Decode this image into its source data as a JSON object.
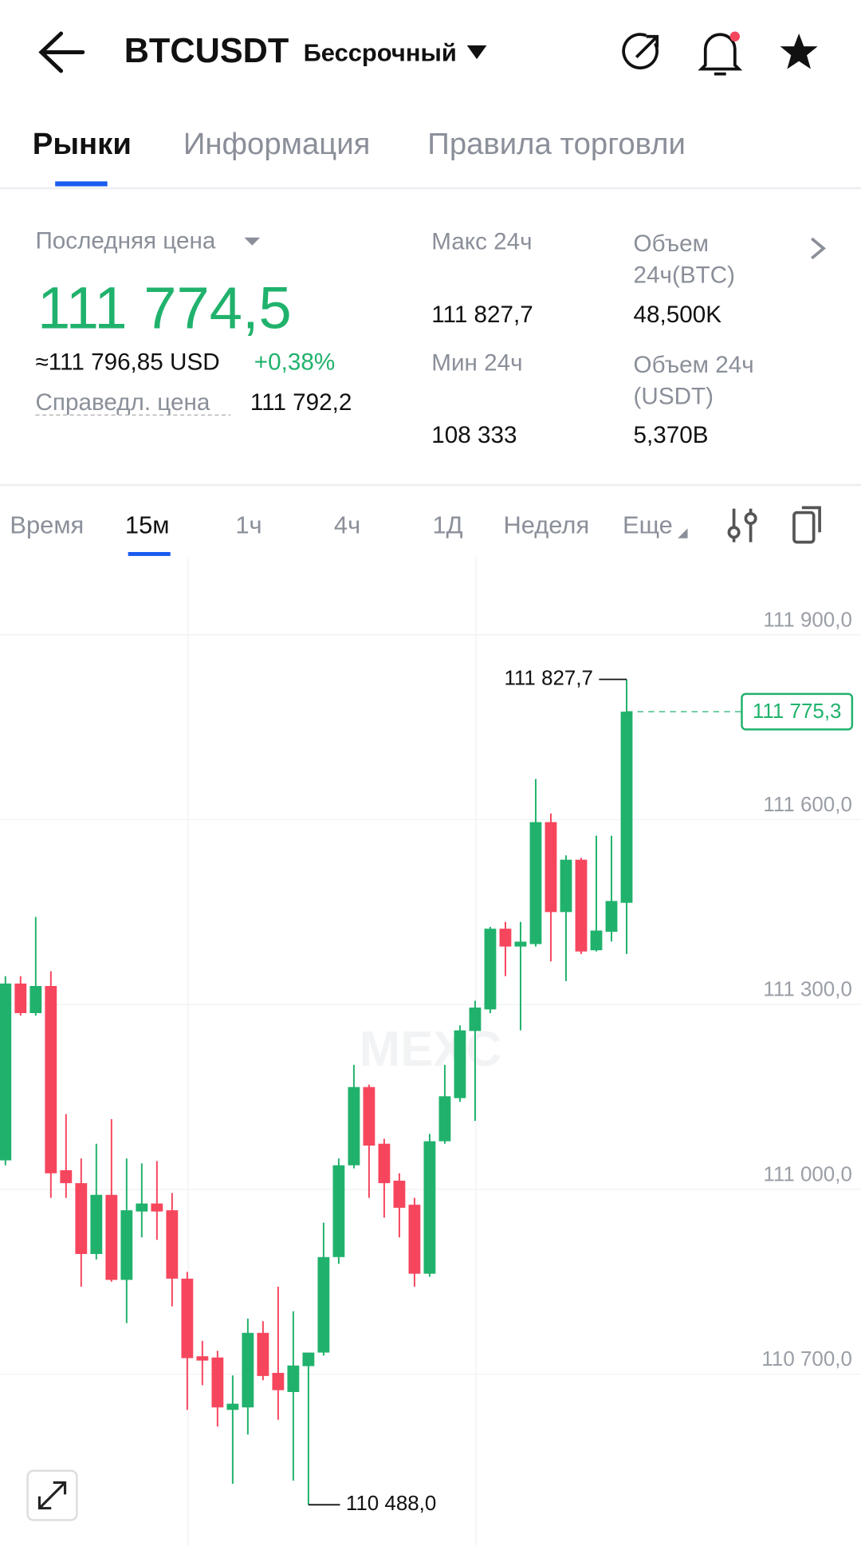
{
  "header": {
    "symbol": "BTCUSDT",
    "contract": "Бессрочный"
  },
  "tabs": [
    "Рынки",
    "Информация",
    "Правила торговли"
  ],
  "stats": {
    "last_price_label": "Последняя цена",
    "last_price": "111 774,5",
    "usd": "≈111 796,85 USD",
    "change": "+0,38%",
    "fair_label": "Справедл. цена",
    "fair": "111 792,2",
    "high_label": "Макс 24ч",
    "high": "111 827,7",
    "low_label": "Мин 24ч",
    "low": "108 333",
    "vol_btc_label": "Объем 24ч(BTC)",
    "vol_btc": "48,500K",
    "vol_usdt_label": "Объем 24ч (USDT)",
    "vol_usdt": "5,370B"
  },
  "timeframes": [
    "Время",
    "15м",
    "1ч",
    "4ч",
    "1Д",
    "Неделя",
    "Еще"
  ],
  "chart_data": {
    "type": "candlestick",
    "watermark": "MEXC",
    "up_color": "#20b26c",
    "down_color": "#f6465d",
    "ylim": [
      110421.6,
      112026.4
    ],
    "yticks": [
      {
        "value": 111900,
        "label": "111 900,0"
      },
      {
        "value": 111600,
        "label": "111 600,0"
      },
      {
        "value": 111300,
        "label": "111 300,0"
      },
      {
        "value": 111000,
        "label": "111 000,0"
      },
      {
        "value": 110700,
        "label": "110 700,0"
      }
    ],
    "grid": true,
    "last_price": {
      "value": 111775.3,
      "label": "111 775,3"
    },
    "annotations": [
      {
        "value": 111827.7,
        "label": "111 827,7"
      },
      {
        "value": 110488,
        "label": "110 488,0"
      }
    ],
    "open": [
      111047,
      111334,
      111286,
      111330,
      111031,
      111010,
      110895,
      110991,
      110853,
      110964,
      110977,
      110966,
      110855,
      110729,
      110727,
      110642,
      110646,
      110767,
      110702,
      110671,
      110713,
      110735,
      110890,
      111039,
      111166,
      111074,
      111014,
      110975,
      110863,
      111078,
      111148,
      111257,
      111292,
      111423,
      111394,
      111398,
      111596,
      111450,
      111535,
      111388,
      111418,
      111465
    ],
    "high": [
      111346,
      111346,
      111442,
      111354,
      111122,
      111050,
      111074,
      111114,
      111050,
      111042,
      111046,
      110994,
      110866,
      110754,
      110738,
      110698,
      110790,
      110786,
      110842,
      110802,
      110735,
      110946,
      111050,
      111202,
      111170,
      111082,
      111026,
      110986,
      111090,
      111202,
      111266,
      111306,
      111426,
      111434,
      111434,
      111666,
      111610,
      111542,
      111538,
      111574,
      111574,
      111827.7
    ],
    "low": [
      111039,
      111282,
      111282,
      110986,
      110986,
      110842,
      110886,
      110850,
      110783,
      110922,
      110918,
      110810,
      110642,
      110682,
      110615,
      110522,
      110602,
      110690,
      110626,
      110527,
      110488,
      110730,
      110879,
      111034,
      110986,
      110954,
      110922,
      110842,
      110858,
      111074,
      111142,
      111111,
      111286,
      111346,
      111258,
      111394,
      111370,
      111338,
      111382,
      111386,
      111402,
      111382
    ],
    "close": [
      111334,
      111286,
      111330,
      111026,
      111010,
      110895,
      110991,
      110853,
      110966,
      110977,
      110964,
      110855,
      110726,
      110722,
      110646,
      110652,
      110767,
      110697,
      110674,
      110714,
      110735,
      110890,
      111039,
      111166,
      111071,
      111010,
      110970,
      110863,
      111078,
      111151,
      111258,
      111295,
      111423,
      111394,
      111402,
      111596,
      111450,
      111535,
      111386,
      111420,
      111468,
      111775.3
    ]
  }
}
